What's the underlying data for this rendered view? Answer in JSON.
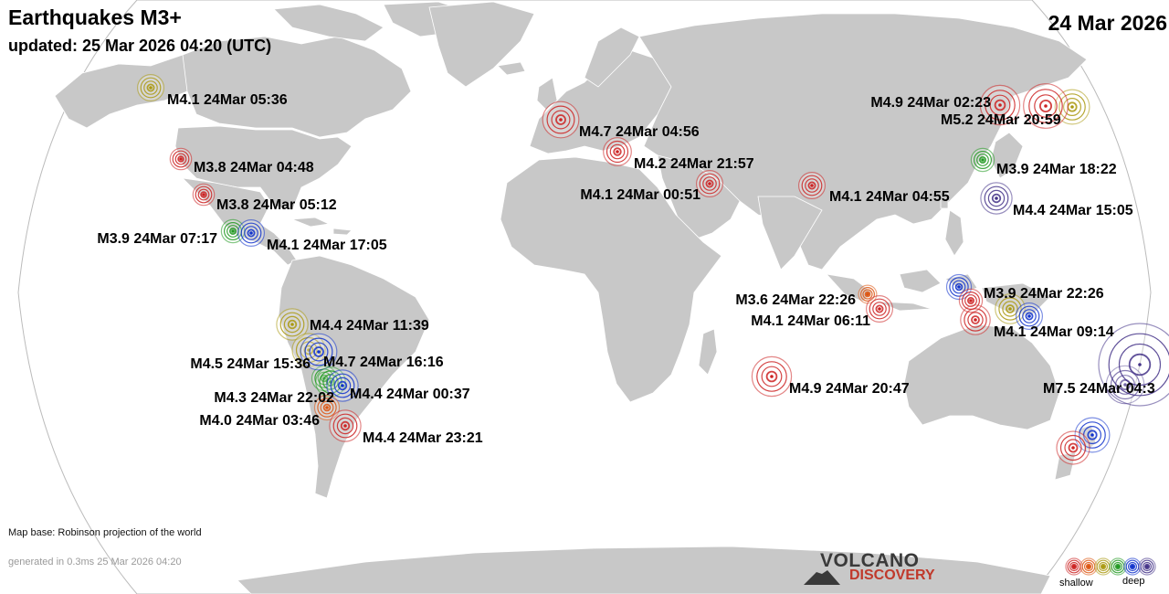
{
  "header": {
    "title": "Earthquakes M3+",
    "updated": "updated: 25 Mar 2026 04:20 (UTC)",
    "date": "24 Mar 2026"
  },
  "footer": {
    "map_base": "Map base: Robinson projection of the world",
    "generated": "generated in 0.3ms 25 Mar 2026 04:20"
  },
  "logo": {
    "line1": "VOLCANO",
    "line2": "DISCOVERY"
  },
  "legend": {
    "shallow": "shallow",
    "deep": "deep",
    "depth_colors": [
      "#cc2222",
      "#dd5511",
      "#aa9910",
      "#229922",
      "#1133cc",
      "#443388"
    ]
  },
  "colors": {
    "land": "#c8c8c8",
    "ocean": "#ffffff",
    "country_borders": "#ffffff"
  },
  "earthquakes": [
    {
      "label": "M4.1 24Mar 05:36",
      "mag": 4.1,
      "depth": "yellow"
    },
    {
      "label": "M3.8 24Mar 04:48",
      "mag": 3.8,
      "depth": "red"
    },
    {
      "label": "M3.8 24Mar 05:12",
      "mag": 3.8,
      "depth": "red"
    },
    {
      "label": "M3.9 24Mar 07:17",
      "mag": 3.9,
      "depth": "green"
    },
    {
      "label": "M4.1 24Mar 17:05",
      "mag": 4.1,
      "depth": "blue"
    },
    {
      "label": "M4.4 24Mar 11:39",
      "mag": 4.4,
      "depth": "yellow"
    },
    {
      "label": "M4.5 24Mar 15:36",
      "mag": 4.5,
      "depth": "yellow"
    },
    {
      "label": "M4.7 24Mar 16:16",
      "mag": 4.7,
      "depth": "blue"
    },
    {
      "label": "M4.3 24Mar 22:02",
      "mag": 4.3,
      "depth": "green"
    },
    {
      "label": "M4.4 24Mar 00:37",
      "mag": 4.4,
      "depth": "blue"
    },
    {
      "label": "M4.0 24Mar 03:46",
      "mag": 4.0,
      "depth": "orange"
    },
    {
      "label": "M4.4 24Mar 23:21",
      "mag": 4.4,
      "depth": "red"
    },
    {
      "label": "M4.7 24Mar 04:56",
      "mag": 4.7,
      "depth": "red"
    },
    {
      "label": "M4.2 24Mar 21:57",
      "mag": 4.2,
      "depth": "red"
    },
    {
      "label": "M4.1 24Mar 00:51",
      "mag": 4.1,
      "depth": "red"
    },
    {
      "label": "M4.1 24Mar 04:55",
      "mag": 4.1,
      "depth": "red"
    },
    {
      "label": "M4.9 24Mar 02:23",
      "mag": 4.9,
      "depth": "red"
    },
    {
      "label": "M5.2 24Mar 20:59",
      "mag": 5.2,
      "depth": "red"
    },
    {
      "label": "M3.9 24Mar 18:22",
      "mag": 3.9,
      "depth": "green"
    },
    {
      "label": "M4.4 24Mar 15:05",
      "mag": 4.4,
      "depth": "purple"
    },
    {
      "label": "M3.6 24Mar 22:26",
      "mag": 3.6,
      "depth": "orange"
    },
    {
      "label": "M4.1 24Mar 06:11",
      "mag": 4.1,
      "depth": "red"
    },
    {
      "label": "M3.9 24Mar 22:26",
      "mag": 3.9,
      "depth": "red"
    },
    {
      "label": "M4.1 24Mar 09:14",
      "mag": 4.1,
      "depth": "blue"
    },
    {
      "label": "M4.9 24Mar 20:47",
      "mag": 4.9,
      "depth": "red"
    },
    {
      "label": "M7.5 24Mar 04:3",
      "mag": 7.5,
      "depth": "purple"
    }
  ]
}
